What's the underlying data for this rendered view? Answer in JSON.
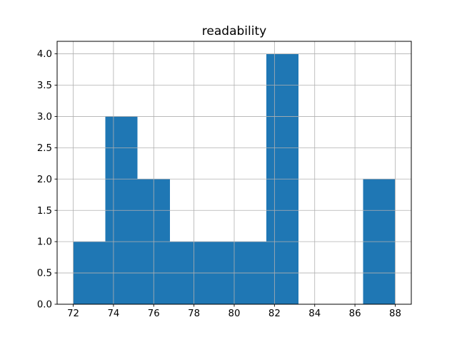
{
  "chart_data": {
    "type": "bar",
    "subtype": "histogram",
    "title": "readability",
    "xlabel": "",
    "ylabel": "",
    "bin_edges": [
      72.0,
      73.6,
      75.2,
      76.8,
      78.4,
      80.0,
      81.6,
      83.2,
      84.8,
      86.4,
      88.0
    ],
    "counts": [
      1,
      3,
      2,
      1,
      1,
      1,
      4,
      0,
      0,
      2
    ],
    "xticks": [
      72,
      74,
      76,
      78,
      80,
      82,
      84,
      86,
      88
    ],
    "xticklabels": [
      "72",
      "74",
      "76",
      "78",
      "80",
      "82",
      "84",
      "86",
      "88"
    ],
    "yticks": [
      0,
      0.5,
      1,
      1.5,
      2,
      2.5,
      3,
      3.5,
      4
    ],
    "yticklabels": [
      "0.0",
      "0.5",
      "1.0",
      "1.5",
      "2.0",
      "2.5",
      "3.0",
      "3.5",
      "4.0"
    ],
    "xlim": [
      71.2,
      88.8
    ],
    "ylim": [
      0,
      4.2
    ],
    "grid": true,
    "grid_over_bars": true,
    "legend_visible": false,
    "colors": {
      "bar": "#1f77b4",
      "grid": "#b0b0b0",
      "axis": "#000000",
      "text": "#000000",
      "background": "#ffffff"
    }
  }
}
